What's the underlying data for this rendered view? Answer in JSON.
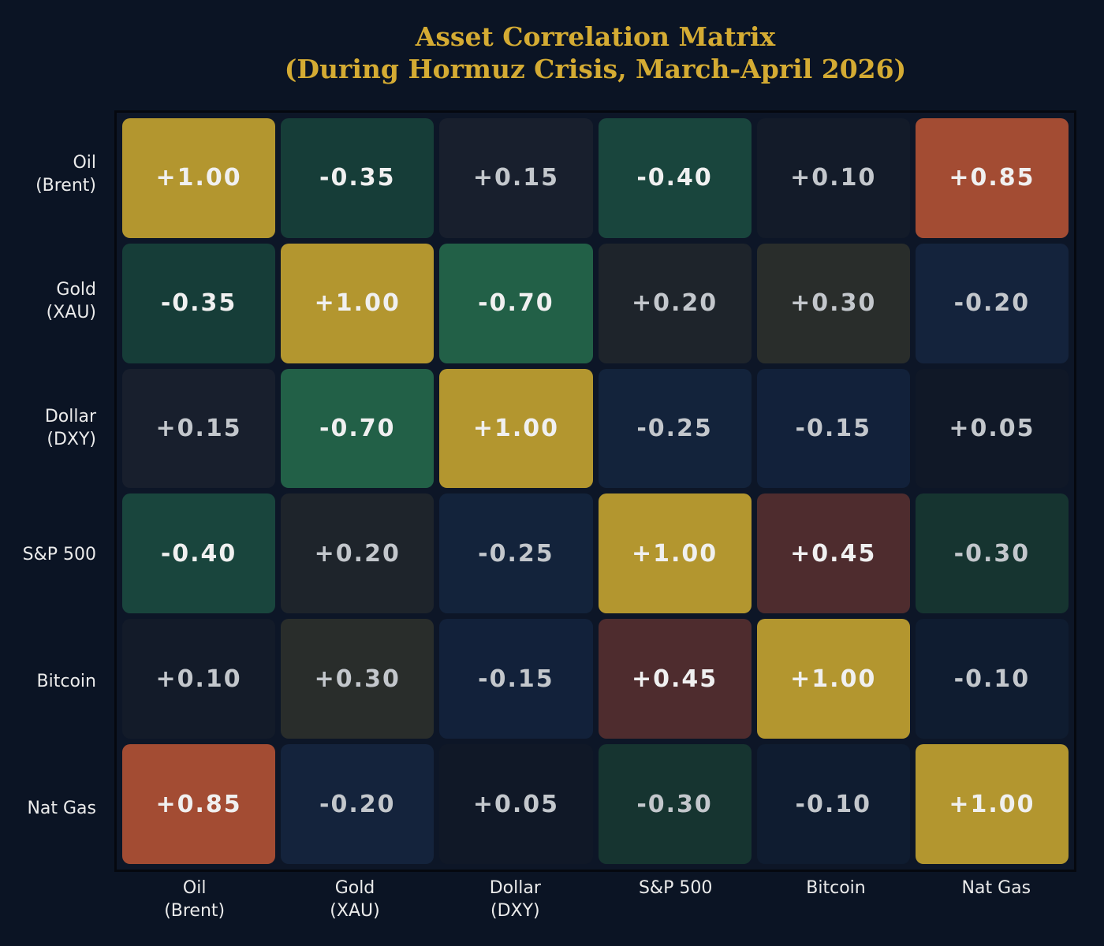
{
  "title": {
    "line1": "Asset Correlation Matrix",
    "line2": "(During Hormuz Crisis, March-April 2026)"
  },
  "colors": {
    "background": "#0b1424",
    "title": "#d4ab33",
    "plot_border": "#05080f",
    "strong_value_text": "#f0f0f0",
    "weak_value_text": "#c3c7cc",
    "axis_label_text": "#ebebeb",
    "diagonal_gold": "#b3962f",
    "strong_positive_rust": "#a34c33",
    "moderate_positive_maroon": "#4e2c2e",
    "strong_negative_green": "#226047",
    "moderate_negative_teal": "#19453d"
  },
  "chart_data": {
    "type": "heatmap",
    "title": "Asset Correlation Matrix (During Hormuz Crisis, March-April 2026)",
    "categories": [
      "Oil (Brent)",
      "Gold (XAU)",
      "Dollar (DXY)",
      "S&P 500",
      "Bitcoin",
      "Nat Gas"
    ],
    "matrix": [
      [
        1.0,
        -0.35,
        0.15,
        -0.4,
        0.1,
        0.85
      ],
      [
        -0.35,
        1.0,
        -0.7,
        0.2,
        0.3,
        -0.2
      ],
      [
        0.15,
        -0.7,
        1.0,
        -0.25,
        -0.15,
        0.05
      ],
      [
        -0.4,
        0.2,
        -0.25,
        1.0,
        0.45,
        -0.3
      ],
      [
        0.1,
        0.3,
        -0.15,
        0.45,
        1.0,
        -0.1
      ],
      [
        0.85,
        -0.2,
        0.05,
        -0.3,
        -0.1,
        1.0
      ]
    ],
    "value_range": [
      -1,
      1
    ],
    "cell_label_format": "signed two decimals (e.g. +0.85, -0.40)",
    "grid": "off",
    "legend": "none"
  },
  "grid": {
    "row_labels": [
      {
        "line1": "Oil",
        "line2": "(Brent)"
      },
      {
        "line1": "Gold",
        "line2": "(XAU)"
      },
      {
        "line1": "Dollar",
        "line2": "(DXY)"
      },
      {
        "line1": "S&P 500",
        "line2": ""
      },
      {
        "line1": "Bitcoin",
        "line2": ""
      },
      {
        "line1": "Nat Gas",
        "line2": ""
      }
    ],
    "col_labels": [
      {
        "line1": "Oil",
        "line2": "(Brent)"
      },
      {
        "line1": "Gold",
        "line2": "(XAU)"
      },
      {
        "line1": "Dollar",
        "line2": "(DXY)"
      },
      {
        "line1": "S&P 500",
        "line2": ""
      },
      {
        "line1": "Bitcoin",
        "line2": ""
      },
      {
        "line1": "Nat Gas",
        "line2": ""
      }
    ],
    "rows": [
      {
        "cells": [
          {
            "v": "+1.00",
            "bg": "#b3962f",
            "fg": "#f0f0f0"
          },
          {
            "v": "-0.35",
            "bg": "#163d38",
            "fg": "#f0f0f0"
          },
          {
            "v": "+0.15",
            "bg": "#181f2d",
            "fg": "#c3c7cc"
          },
          {
            "v": "-0.40",
            "bg": "#19453d",
            "fg": "#f0f0f0"
          },
          {
            "v": "+0.10",
            "bg": "#131b29",
            "fg": "#c3c7cc"
          },
          {
            "v": "+0.85",
            "bg": "#a34c33",
            "fg": "#f0f0f0"
          }
        ]
      },
      {
        "cells": [
          {
            "v": "-0.35",
            "bg": "#163d38",
            "fg": "#f0f0f0"
          },
          {
            "v": "+1.00",
            "bg": "#b3962f",
            "fg": "#f0f0f0"
          },
          {
            "v": "-0.70",
            "bg": "#226047",
            "fg": "#f0f0f0"
          },
          {
            "v": "+0.20",
            "bg": "#1e242b",
            "fg": "#c3c7cc"
          },
          {
            "v": "+0.30",
            "bg": "#292d2b",
            "fg": "#c3c7cc"
          },
          {
            "v": "-0.20",
            "bg": "#14233c",
            "fg": "#c3c7cc"
          }
        ]
      },
      {
        "cells": [
          {
            "v": "+0.15",
            "bg": "#181f2d",
            "fg": "#c3c7cc"
          },
          {
            "v": "-0.70",
            "bg": "#226047",
            "fg": "#f0f0f0"
          },
          {
            "v": "+1.00",
            "bg": "#b3962f",
            "fg": "#f0f0f0"
          },
          {
            "v": "-0.25",
            "bg": "#13233b",
            "fg": "#c3c7cc"
          },
          {
            "v": "-0.15",
            "bg": "#12213a",
            "fg": "#c3c7cc"
          },
          {
            "v": "+0.05",
            "bg": "#101827",
            "fg": "#c3c7cc"
          }
        ]
      },
      {
        "cells": [
          {
            "v": "-0.40",
            "bg": "#19453d",
            "fg": "#f0f0f0"
          },
          {
            "v": "+0.20",
            "bg": "#1e242b",
            "fg": "#c3c7cc"
          },
          {
            "v": "-0.25",
            "bg": "#13233b",
            "fg": "#c3c7cc"
          },
          {
            "v": "+1.00",
            "bg": "#b3962f",
            "fg": "#f0f0f0"
          },
          {
            "v": "+0.45",
            "bg": "#4e2c2e",
            "fg": "#f0f0f0"
          },
          {
            "v": "-0.30",
            "bg": "#163430",
            "fg": "#c3c7cc"
          }
        ]
      },
      {
        "cells": [
          {
            "v": "+0.10",
            "bg": "#131b29",
            "fg": "#c3c7cc"
          },
          {
            "v": "+0.30",
            "bg": "#292d2b",
            "fg": "#c3c7cc"
          },
          {
            "v": "-0.15",
            "bg": "#12213a",
            "fg": "#c3c7cc"
          },
          {
            "v": "+0.45",
            "bg": "#4e2c2e",
            "fg": "#f0f0f0"
          },
          {
            "v": "+1.00",
            "bg": "#b3962f",
            "fg": "#f0f0f0"
          },
          {
            "v": "-0.10",
            "bg": "#0f1c30",
            "fg": "#c3c7cc"
          }
        ]
      },
      {
        "cells": [
          {
            "v": "+0.85",
            "bg": "#a34c33",
            "fg": "#f0f0f0"
          },
          {
            "v": "-0.20",
            "bg": "#14233c",
            "fg": "#c3c7cc"
          },
          {
            "v": "+0.05",
            "bg": "#101827",
            "fg": "#c3c7cc"
          },
          {
            "v": "-0.30",
            "bg": "#163430",
            "fg": "#c3c7cc"
          },
          {
            "v": "-0.10",
            "bg": "#0f1c30",
            "fg": "#c3c7cc"
          },
          {
            "v": "+1.00",
            "bg": "#b3962f",
            "fg": "#f0f0f0"
          }
        ]
      }
    ]
  }
}
